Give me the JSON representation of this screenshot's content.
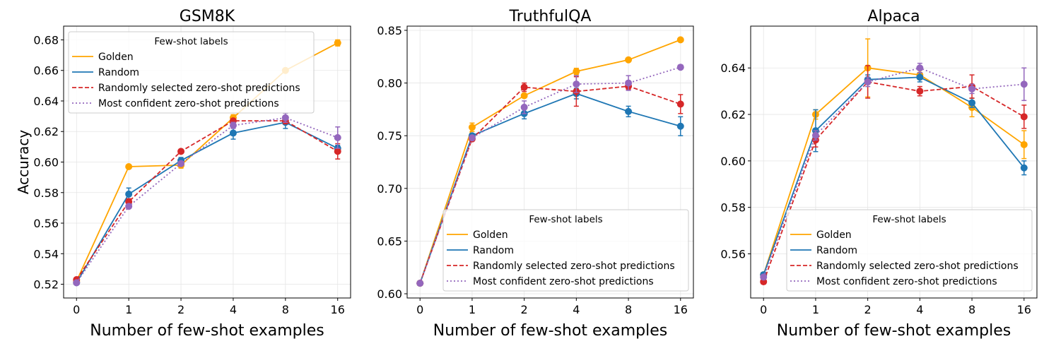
{
  "chart_data": [
    {
      "type": "line",
      "title": "GSM8K",
      "xlabel": "Number of few-shot examples",
      "ylabel": "Accuracy",
      "x": [
        "0",
        "1",
        "2",
        "4",
        "8",
        "16"
      ],
      "ylim": [
        0.511,
        0.689
      ],
      "yticks": [
        "0.52",
        "0.54",
        "0.56",
        "0.58",
        "0.60",
        "0.62",
        "0.64",
        "0.66",
        "0.68"
      ],
      "grid": true,
      "legend": {
        "title": "Few-shot labels",
        "placement": "top-left"
      },
      "series": [
        {
          "name": "Golden",
          "color": "#ffa500",
          "style": "solid",
          "values": [
            0.522,
            0.597,
            0.598,
            0.629,
            0.66,
            0.678
          ],
          "err": [
            0.001,
            0.001,
            0.002,
            0.002,
            0.001,
            0.002
          ]
        },
        {
          "name": "Random",
          "color": "#1f77b4",
          "style": "solid",
          "values": [
            0.521,
            0.579,
            0.601,
            0.619,
            0.626,
            0.609
          ],
          "err": [
            0.001,
            0.004,
            0.002,
            0.004,
            0.004,
            0.002
          ]
        },
        {
          "name": "Randomly selected zero-shot predictions",
          "color": "#d62728",
          "style": "dashed",
          "values": [
            0.523,
            0.574,
            0.607,
            0.627,
            0.627,
            0.607
          ],
          "err": [
            0.001,
            0.002,
            0.001,
            0.001,
            0.002,
            0.005
          ]
        },
        {
          "name": "Most confident zero-shot predictions",
          "color": "#9467bd",
          "style": "dotted",
          "values": [
            0.521,
            0.571,
            0.599,
            0.624,
            0.629,
            0.616
          ],
          "err": [
            0.001,
            0.001,
            0.001,
            0.002,
            0.003,
            0.007
          ]
        }
      ]
    },
    {
      "type": "line",
      "title": "TruthfulQA",
      "xlabel": "Number of few-shot examples",
      "ylabel": "",
      "x": [
        "0",
        "1",
        "2",
        "4",
        "8",
        "16"
      ],
      "ylim": [
        0.596,
        0.854
      ],
      "yticks": [
        "0.60",
        "0.65",
        "0.70",
        "0.75",
        "0.80",
        "0.85"
      ],
      "grid": true,
      "legend": {
        "title": "Few-shot labels",
        "placement": "bottom-right"
      },
      "series": [
        {
          "name": "Golden",
          "color": "#ffa500",
          "style": "solid",
          "values": [
            0.61,
            0.758,
            0.788,
            0.811,
            0.822,
            0.841
          ],
          "err": [
            0.001,
            0.004,
            0.002,
            0.003,
            0.001,
            0.001
          ]
        },
        {
          "name": "Random",
          "color": "#1f77b4",
          "style": "solid",
          "values": [
            0.61,
            0.75,
            0.771,
            0.79,
            0.773,
            0.759
          ],
          "err": [
            0.001,
            0.002,
            0.005,
            0.005,
            0.005,
            0.009
          ]
        },
        {
          "name": "Randomly selected zero-shot predictions",
          "color": "#d62728",
          "style": "dashed",
          "values": [
            0.61,
            0.747,
            0.796,
            0.792,
            0.797,
            0.78
          ],
          "err": [
            0.001,
            0.001,
            0.004,
            0.014,
            0.003,
            0.009
          ]
        },
        {
          "name": "Most confident zero-shot predictions",
          "color": "#9467bd",
          "style": "dotted",
          "values": [
            0.61,
            0.748,
            0.777,
            0.799,
            0.8,
            0.815
          ],
          "err": [
            0.001,
            0.001,
            0.006,
            0.008,
            0.007,
            0.002
          ]
        }
      ]
    },
    {
      "type": "line",
      "title": "Alpaca",
      "xlabel": "Number of few-shot examples",
      "ylabel": "",
      "x": [
        "0",
        "1",
        "2",
        "4",
        "8",
        "16"
      ],
      "ylim": [
        0.541,
        0.658
      ],
      "yticks": [
        "0.56",
        "0.58",
        "0.60",
        "0.62",
        "0.64"
      ],
      "grid": true,
      "legend": {
        "title": "Few-shot labels",
        "placement": "bottom-right"
      },
      "series": [
        {
          "name": "Golden",
          "color": "#ffa500",
          "style": "solid",
          "values": [
            0.551,
            0.62,
            0.64,
            0.637,
            0.623,
            0.607
          ],
          "err": [
            0.001,
            0.002,
            0.0125,
            0.002,
            0.004,
            0.006
          ]
        },
        {
          "name": "Random",
          "color": "#1f77b4",
          "style": "solid",
          "values": [
            0.551,
            0.613,
            0.635,
            0.636,
            0.625,
            0.597
          ],
          "err": [
            0.001,
            0.009,
            0.002,
            0.002,
            0.002,
            0.003
          ]
        },
        {
          "name": "Randomly selected zero-shot predictions",
          "color": "#d62728",
          "style": "dashed",
          "values": [
            0.548,
            0.609,
            0.634,
            0.63,
            0.632,
            0.619
          ],
          "err": [
            0.001,
            0.003,
            0.007,
            0.002,
            0.005,
            0.005
          ]
        },
        {
          "name": "Most confident zero-shot predictions",
          "color": "#9467bd",
          "style": "dotted",
          "values": [
            0.55,
            0.611,
            0.634,
            0.64,
            0.631,
            0.633
          ],
          "err": [
            0.001,
            0.002,
            0.002,
            0.002,
            0.002,
            0.007
          ]
        }
      ]
    }
  ]
}
